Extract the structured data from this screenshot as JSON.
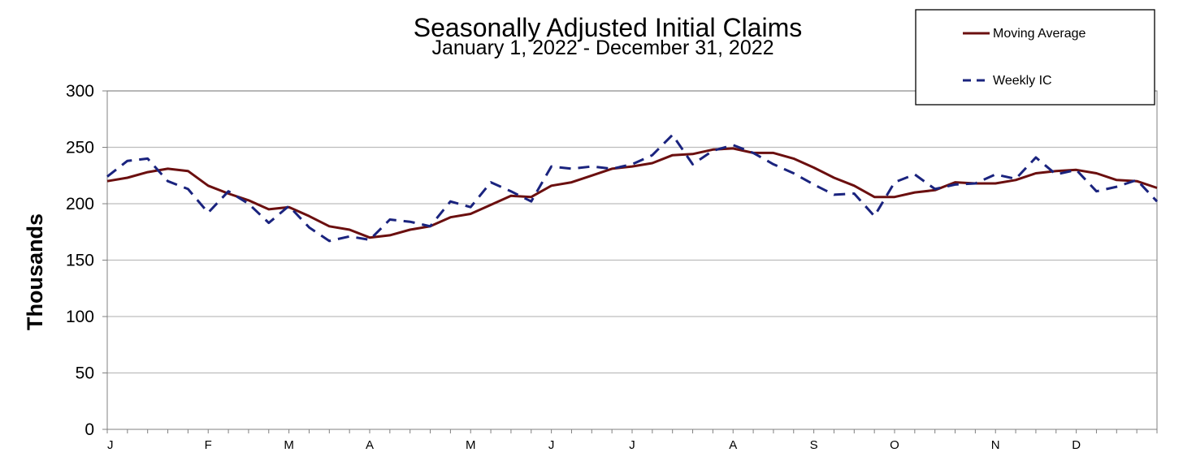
{
  "chart_data": {
    "type": "line",
    "title": "Seasonally Adjusted Initial Claims",
    "subtitle": "January 1, 2022 - December 31, 2022",
    "ylabel": "Thousands",
    "xlabel": "",
    "ylim": [
      0,
      300
    ],
    "yticks": [
      0,
      50,
      100,
      150,
      200,
      250,
      300
    ],
    "grid": true,
    "legend_position": "top-right",
    "month_labels": [
      "J",
      "F",
      "M",
      "A",
      "M",
      "J",
      "J",
      "A",
      "S",
      "O",
      "N",
      "D"
    ],
    "month_label_weeks": [
      0,
      5,
      9,
      13,
      18,
      22,
      26,
      31,
      35,
      39,
      44,
      48
    ],
    "weeks": 53,
    "series": [
      {
        "name": "Moving Average",
        "color": "#6b0f0f",
        "style": "solid",
        "values": [
          220,
          223,
          228,
          231,
          229,
          216,
          209,
          203,
          195,
          197,
          189,
          180,
          177,
          170,
          172,
          177,
          180,
          188,
          191,
          199,
          207,
          206,
          216,
          219,
          225,
          231,
          233,
          236,
          243,
          244,
          248,
          249,
          245,
          245,
          240,
          232,
          223,
          216,
          206,
          206,
          210,
          212,
          219,
          218,
          218,
          221,
          227,
          229,
          230,
          227,
          221,
          220,
          214
        ]
      },
      {
        "name": "Weekly IC",
        "color": "#1a237e",
        "style": "dashed",
        "values": [
          224,
          238,
          240,
          220,
          213,
          192,
          211,
          200,
          183,
          198,
          179,
          167,
          171,
          168,
          186,
          184,
          180,
          202,
          197,
          219,
          211,
          202,
          233,
          231,
          233,
          231,
          235,
          243,
          261,
          235,
          247,
          252,
          245,
          235,
          227,
          217,
          208,
          209,
          189,
          219,
          226,
          213,
          217,
          218,
          226,
          222,
          241,
          226,
          230,
          211,
          215,
          221,
          202
        ]
      }
    ]
  }
}
